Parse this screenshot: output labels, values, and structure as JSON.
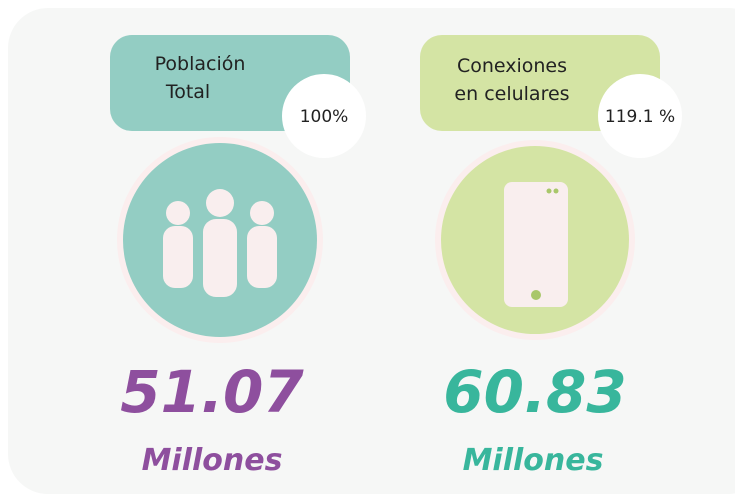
{
  "cards": [
    {
      "label": [
        "Población",
        "Total"
      ],
      "percent": "100%",
      "value": "51.07",
      "unit": "Millones"
    },
    {
      "label": [
        "Conexiones",
        "en celulares"
      ],
      "percent": "119.1 %",
      "value": "60.83",
      "unit": "Millones"
    }
  ]
}
